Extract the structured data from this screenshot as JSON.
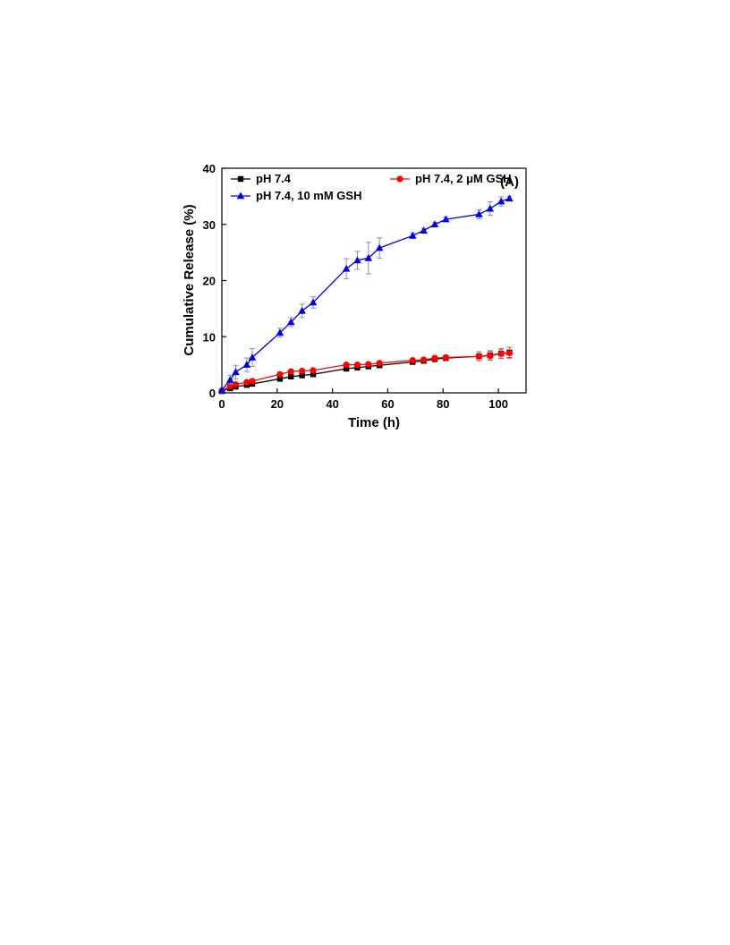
{
  "chart_data": {
    "type": "line",
    "panel_label": "(A)",
    "xlabel": "Time (h)",
    "ylabel": "Cumulative Release (%)",
    "xlim": [
      0,
      110
    ],
    "ylim": [
      0,
      40
    ],
    "xticks": [
      0,
      20,
      40,
      60,
      80,
      100
    ],
    "yticks": [
      0,
      10,
      20,
      30,
      40
    ],
    "grid": false,
    "legend_position": "top-left",
    "series": [
      {
        "name": "pH 7.4",
        "color": "#000000",
        "marker": "square",
        "x": [
          0,
          3,
          5,
          9,
          11,
          21,
          25,
          29,
          33,
          45,
          49,
          53,
          57,
          69,
          73,
          77,
          81,
          93,
          97,
          101,
          104
        ],
        "y": [
          0.3,
          0.8,
          1.1,
          1.4,
          1.6,
          2.5,
          2.9,
          3.1,
          3.3,
          4.3,
          4.5,
          4.7,
          4.9,
          5.5,
          5.7,
          6.0,
          6.2,
          6.5,
          6.7,
          7.0,
          7.2
        ],
        "err": [
          0.1,
          0.2,
          0.2,
          0.2,
          0.2,
          0.3,
          0.3,
          0.3,
          0.3,
          0.3,
          0.3,
          0.3,
          0.3,
          0.4,
          0.4,
          0.4,
          0.4,
          0.8,
          0.8,
          0.8,
          0.9
        ]
      },
      {
        "name": "pH 7.4, 2 μM GSH",
        "color": "#ff0000",
        "marker": "circle",
        "x": [
          0,
          3,
          5,
          9,
          11,
          21,
          25,
          29,
          33,
          45,
          49,
          53,
          57,
          69,
          73,
          77,
          81,
          93,
          97,
          101,
          104
        ],
        "y": [
          0.4,
          1.2,
          1.5,
          1.9,
          2.1,
          3.3,
          3.8,
          3.9,
          4.0,
          5.0,
          5.0,
          5.1,
          5.3,
          5.8,
          5.9,
          6.2,
          6.3,
          6.5,
          6.6,
          7.0,
          7.1
        ],
        "err": [
          0.1,
          0.3,
          0.3,
          0.3,
          0.3,
          0.3,
          0.3,
          0.3,
          0.3,
          0.3,
          0.3,
          0.3,
          0.3,
          0.3,
          0.3,
          0.3,
          0.3,
          0.8,
          0.8,
          0.9,
          1.0
        ]
      },
      {
        "name": "pH 7.4, 10 mM GSH",
        "color": "#0000dd",
        "marker": "triangle",
        "x": [
          0,
          3,
          5,
          9,
          11,
          21,
          25,
          29,
          33,
          45,
          49,
          53,
          57,
          69,
          73,
          77,
          81,
          93,
          97,
          101,
          104
        ],
        "y": [
          0.5,
          2.3,
          3.7,
          5.0,
          6.3,
          10.7,
          12.6,
          14.6,
          16.1,
          22.1,
          23.6,
          24.0,
          25.8,
          28.0,
          28.9,
          30.0,
          30.9,
          31.8,
          32.8,
          34.1,
          34.6
        ],
        "err": [
          0.2,
          0.8,
          1.2,
          1.2,
          1.6,
          0.8,
          0.8,
          1.2,
          1.0,
          1.8,
          1.6,
          2.8,
          1.8,
          0.5,
          0.4,
          0.4,
          0.4,
          0.8,
          1.2,
          0.8,
          0.4
        ]
      }
    ]
  }
}
